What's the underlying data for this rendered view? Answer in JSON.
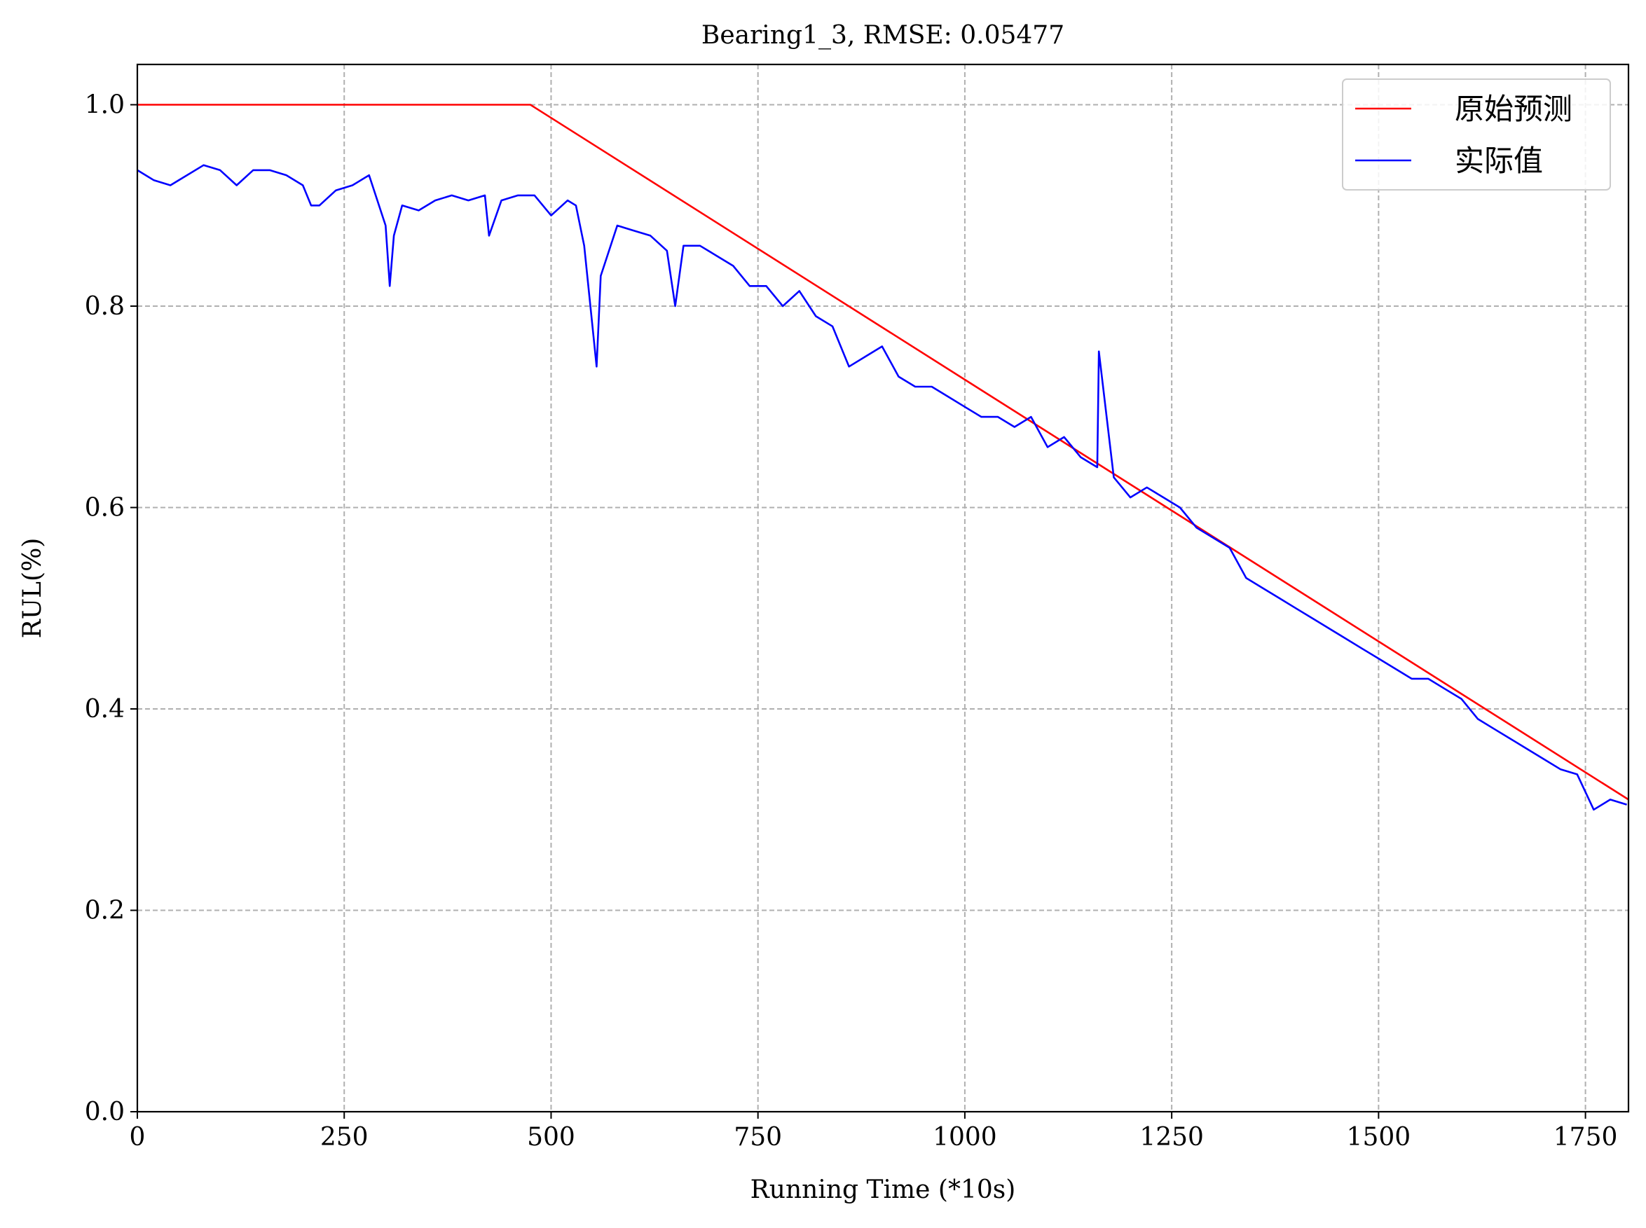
{
  "chart_data": {
    "type": "line",
    "title": "Bearing1_3, RMSE: 0.05477",
    "xlabel": "Running Time (*10s)",
    "ylabel": "RUL(%)",
    "xlim": [
      0,
      1802
    ],
    "ylim": [
      0,
      1.04
    ],
    "x_ticks": [
      0,
      250,
      500,
      750,
      1000,
      1250,
      1500,
      1750
    ],
    "x_tick_labels": [
      "0",
      "250",
      "500",
      "750",
      "1000",
      "1250",
      "1500",
      "1750"
    ],
    "y_ticks": [
      0.0,
      0.2,
      0.4,
      0.6,
      0.8,
      1.0
    ],
    "y_tick_labels": [
      "0.0",
      "0.2",
      "0.4",
      "0.6",
      "0.8",
      "1.0"
    ],
    "grid": true,
    "legend_position": "top-right",
    "series": [
      {
        "name": "原始预测",
        "color": "#ff0000",
        "x": [
          0,
          475,
          1802
        ],
        "y": [
          1.0,
          1.0,
          0.31
        ]
      },
      {
        "name": "实际值",
        "color": "#0000ff",
        "x": [
          0,
          20,
          40,
          60,
          80,
          100,
          120,
          140,
          160,
          180,
          200,
          210,
          220,
          240,
          260,
          280,
          300,
          305,
          310,
          320,
          340,
          360,
          380,
          400,
          420,
          425,
          440,
          460,
          480,
          500,
          520,
          530,
          540,
          550,
          555,
          560,
          580,
          600,
          620,
          640,
          650,
          660,
          680,
          700,
          720,
          740,
          760,
          780,
          800,
          820,
          840,
          860,
          880,
          900,
          920,
          940,
          960,
          980,
          1000,
          1020,
          1040,
          1060,
          1080,
          1100,
          1120,
          1140,
          1160,
          1162,
          1180,
          1200,
          1220,
          1240,
          1260,
          1280,
          1300,
          1320,
          1340,
          1360,
          1380,
          1400,
          1420,
          1440,
          1460,
          1480,
          1500,
          1520,
          1540,
          1560,
          1580,
          1600,
          1620,
          1640,
          1660,
          1680,
          1700,
          1720,
          1740,
          1760,
          1780,
          1800
        ],
        "y": [
          0.935,
          0.925,
          0.92,
          0.93,
          0.94,
          0.935,
          0.92,
          0.935,
          0.935,
          0.93,
          0.92,
          0.9,
          0.9,
          0.915,
          0.92,
          0.93,
          0.88,
          0.82,
          0.87,
          0.9,
          0.895,
          0.905,
          0.91,
          0.905,
          0.91,
          0.87,
          0.905,
          0.91,
          0.91,
          0.89,
          0.905,
          0.9,
          0.86,
          0.78,
          0.74,
          0.83,
          0.88,
          0.875,
          0.87,
          0.855,
          0.8,
          0.86,
          0.86,
          0.85,
          0.84,
          0.82,
          0.82,
          0.8,
          0.815,
          0.79,
          0.78,
          0.74,
          0.75,
          0.76,
          0.73,
          0.72,
          0.72,
          0.71,
          0.7,
          0.69,
          0.69,
          0.68,
          0.69,
          0.66,
          0.67,
          0.65,
          0.64,
          0.755,
          0.63,
          0.61,
          0.62,
          0.61,
          0.6,
          0.58,
          0.57,
          0.56,
          0.53,
          0.52,
          0.51,
          0.5,
          0.49,
          0.48,
          0.47,
          0.46,
          0.45,
          0.44,
          0.43,
          0.43,
          0.42,
          0.41,
          0.39,
          0.38,
          0.37,
          0.36,
          0.35,
          0.34,
          0.335,
          0.3,
          0.31,
          0.305
        ]
      }
    ]
  }
}
